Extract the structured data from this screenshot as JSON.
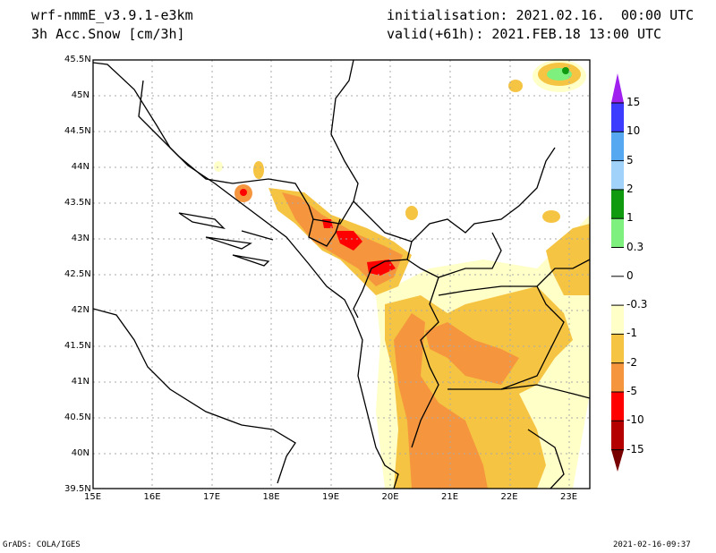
{
  "header": {
    "model": "wrf-nmmE_v3.9.1-e3km",
    "variable": "3h Acc.Snow [cm/3h]",
    "init": "initialisation: 2021.02.16.  00:00 UTC",
    "valid": "valid(+61h): 2021.FEB.18 13:00 UTC"
  },
  "lat_ticks": [
    "45.5N",
    "45N",
    "44.5N",
    "44N",
    "43.5N",
    "43N",
    "42.5N",
    "42N",
    "41.5N",
    "41N",
    "40.5N",
    "40N",
    "39.5N"
  ],
  "lon_ticks": [
    "15E",
    "16E",
    "17E",
    "18E",
    "19E",
    "20E",
    "21E",
    "22E",
    "23E"
  ],
  "colorbar": {
    "labels": [
      "15",
      "10",
      "5",
      "2",
      "1",
      "0.3",
      "0",
      "-0.3",
      "-1",
      "-2",
      "-5",
      "-10",
      "-15"
    ],
    "colors": [
      "#a020f0",
      "#3c3cff",
      "#56a8f0",
      "#a0d2fa",
      "#0f9a0f",
      "#7df07d",
      "#ffffff",
      "#ffffff",
      "#ffffc8",
      "#f5c442",
      "#f5963f",
      "#ff0000",
      "#b40000",
      "#780000"
    ]
  },
  "footer": {
    "left": "GrADS: COLA/IGES",
    "right": "2021-02-16-09:37"
  }
}
